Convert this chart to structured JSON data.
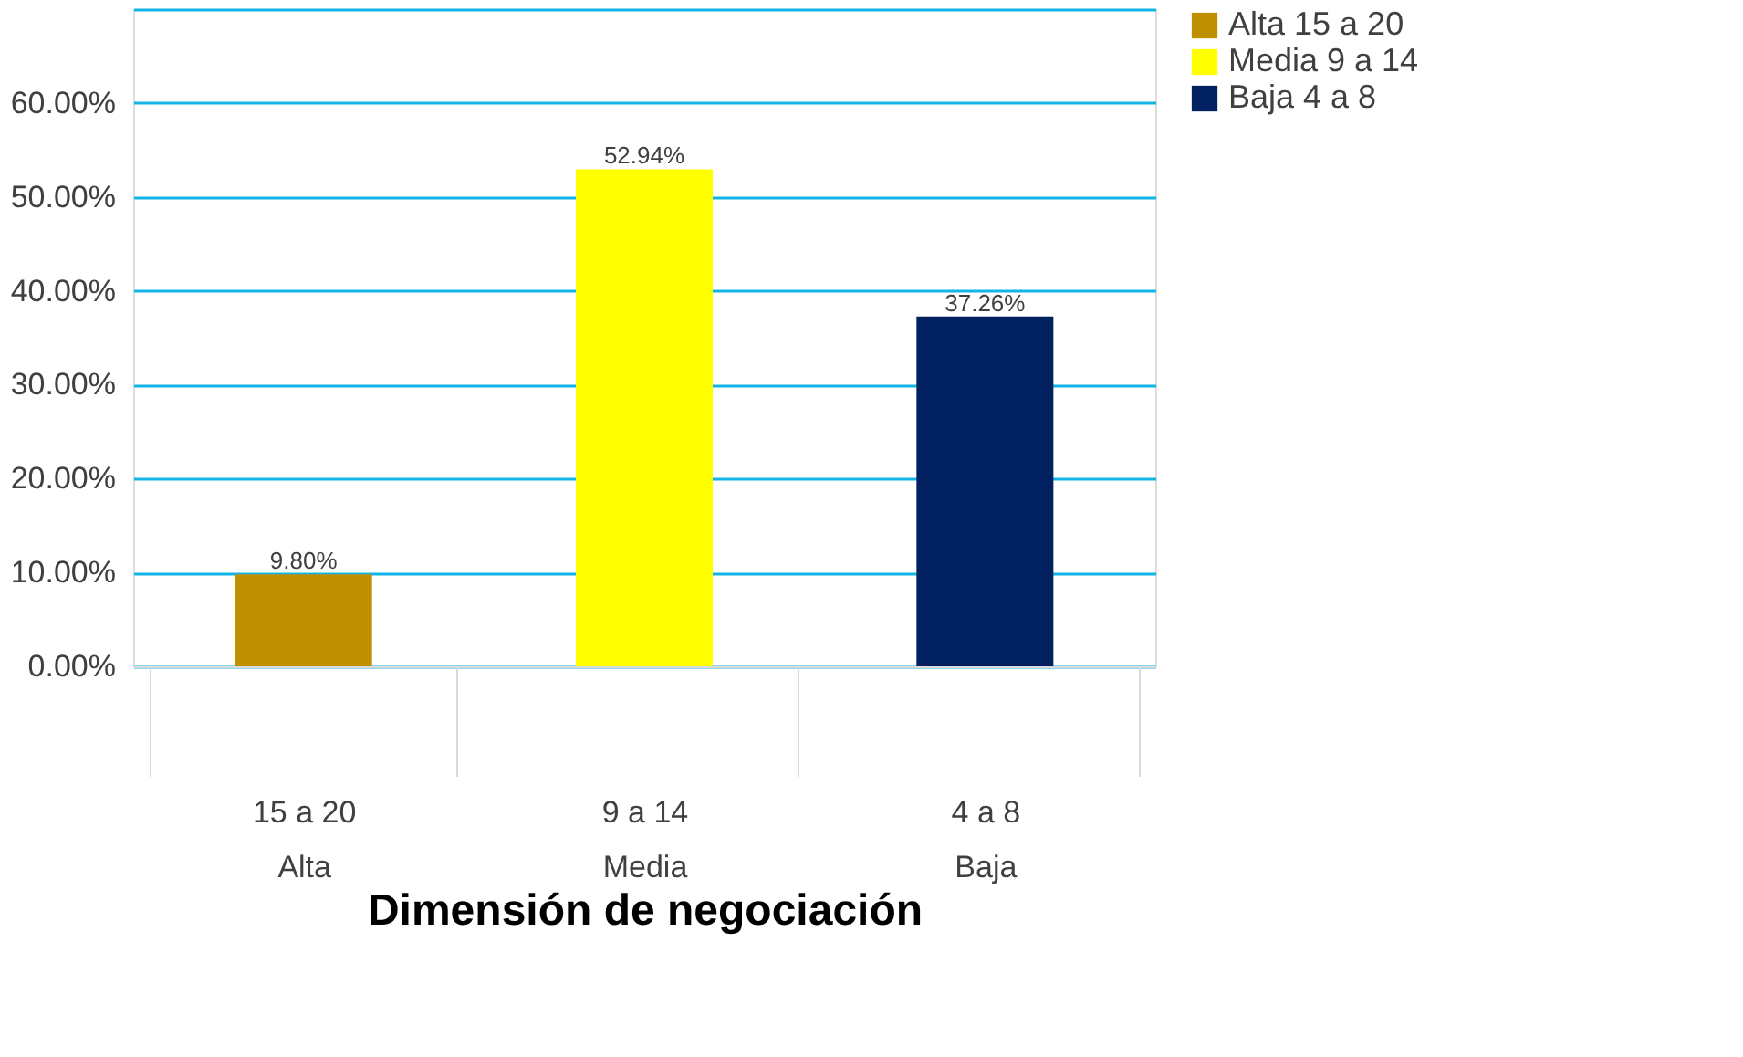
{
  "chart_data": {
    "type": "bar",
    "xlabel": "Dimensión de negociación",
    "categories": [
      "15 a 20\nAlta",
      "9 a 14\nMedia",
      "4 a 8\nBaja"
    ],
    "series": [
      {
        "name": "Alta 15 a 20",
        "color": "#bf9000",
        "values": [
          9.8,
          null,
          null
        ],
        "value_labels": [
          "9.80%",
          null,
          null
        ]
      },
      {
        "name": "Media 9 a 14",
        "color": "#ffff00",
        "values": [
          null,
          52.94,
          null
        ],
        "value_labels": [
          null,
          "52.94%",
          null
        ]
      },
      {
        "name": "Baja 4 a 8",
        "color": "#002060",
        "values": [
          null,
          null,
          37.26
        ],
        "value_labels": [
          null,
          null,
          "37.26%"
        ]
      }
    ],
    "ylim": [
      0,
      70
    ],
    "yticks": [
      {
        "value": 0,
        "label": "0.00%"
      },
      {
        "value": 10,
        "label": "10.00%"
      },
      {
        "value": 20,
        "label": "20.00%"
      },
      {
        "value": 30,
        "label": "30.00%"
      },
      {
        "value": 40,
        "label": "40.00%"
      },
      {
        "value": 50,
        "label": "50.00%"
      },
      {
        "value": 60,
        "label": "60.00%"
      },
      {
        "value": 70,
        "label": null
      }
    ],
    "grid": "y",
    "legend": "right"
  }
}
